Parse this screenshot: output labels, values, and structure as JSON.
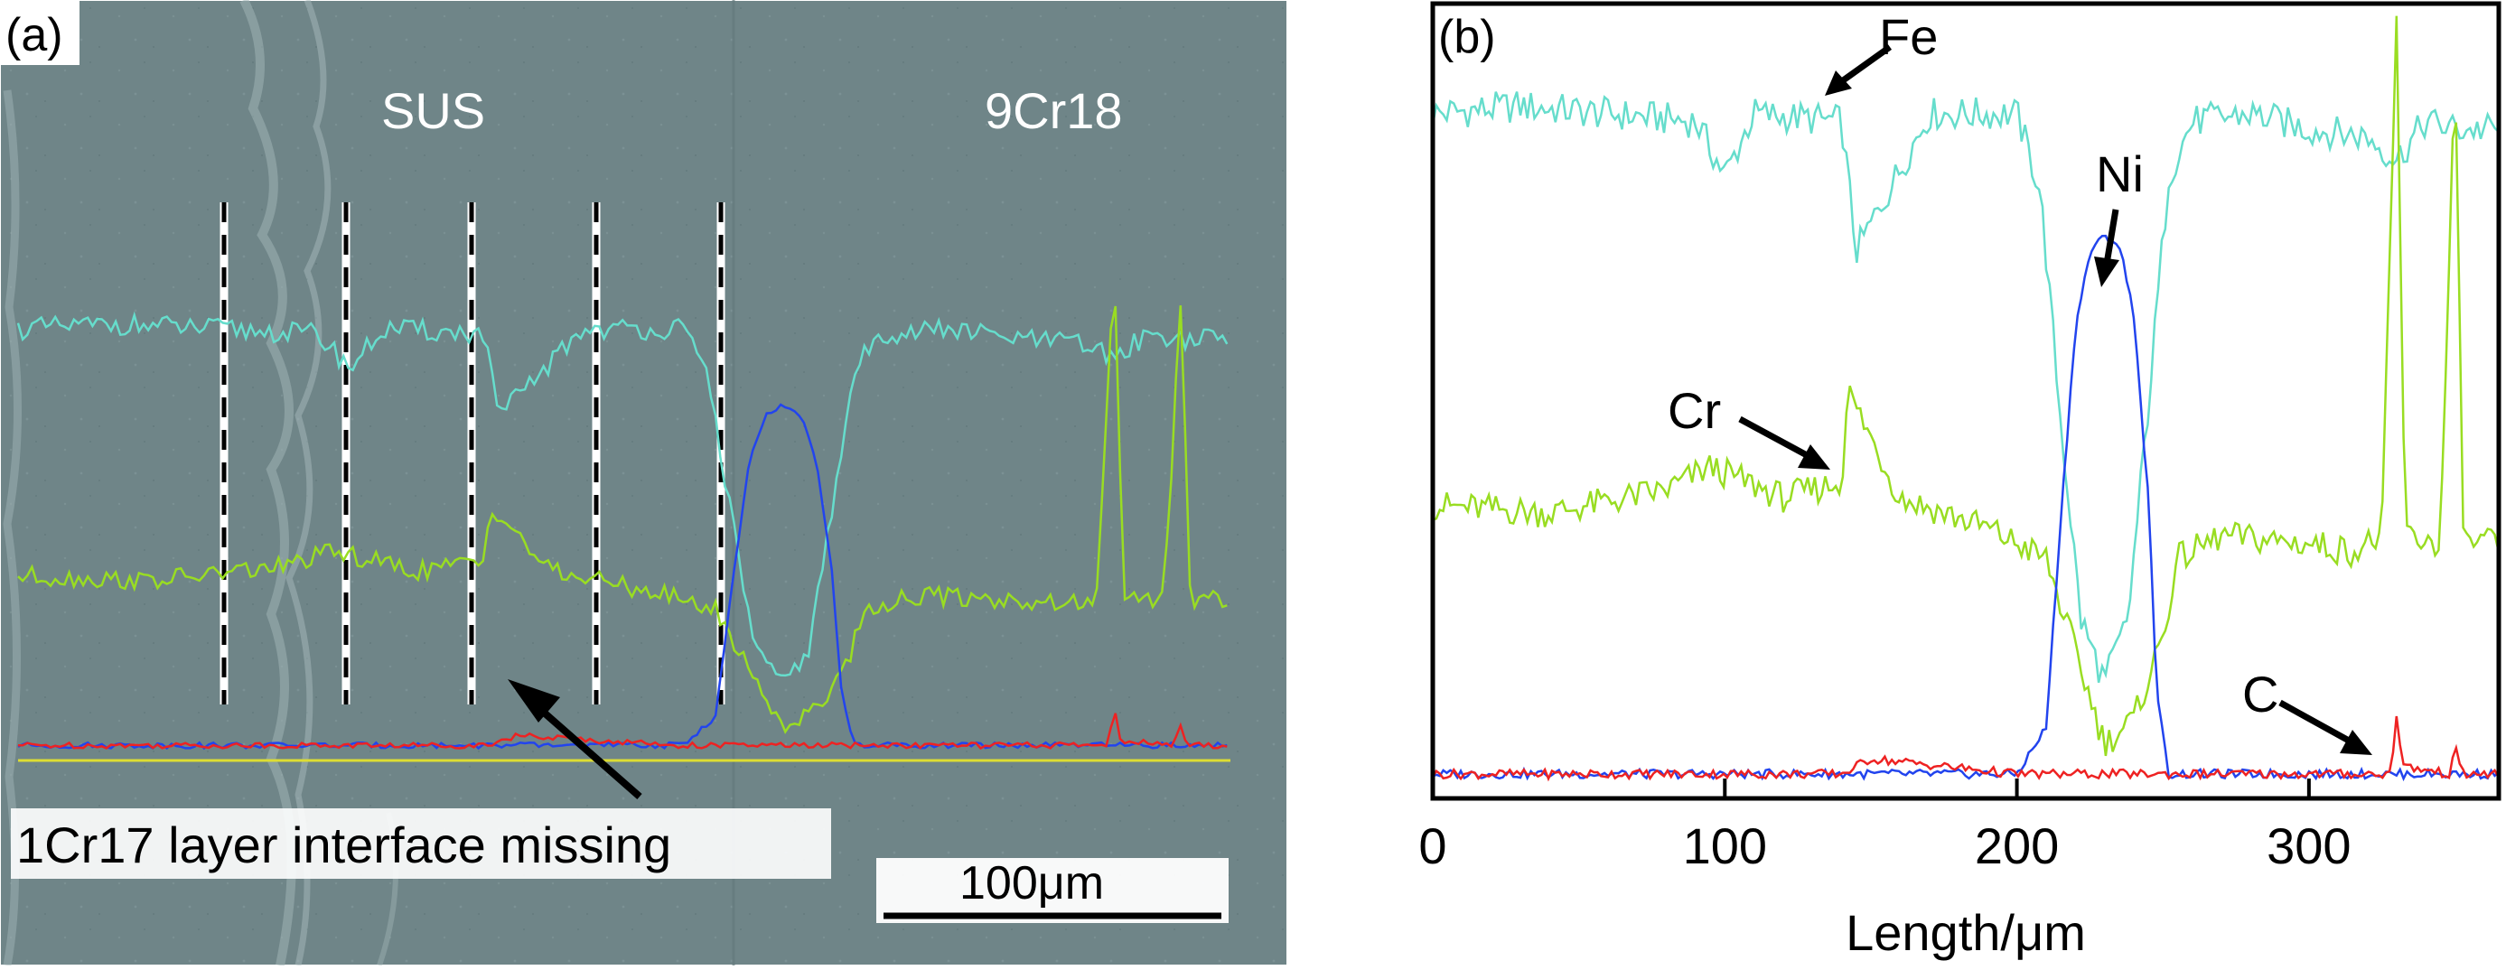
{
  "colors": {
    "fe": "#66ddcc",
    "cr": "#99dd22",
    "ni": "#2244ee",
    "c": "#ee2222",
    "baseline": "#dddd33",
    "micrograph": "#6e8487",
    "axis": "#000000"
  },
  "panel_a": {
    "label": "(a)",
    "region_left": "SUS",
    "region_right": "9Cr18",
    "annotation": "1Cr17 layer interface missing",
    "scale_bar": "100μm"
  },
  "panel_b": {
    "label": "(b)",
    "labels": {
      "fe": "Fe",
      "ni": "Ni",
      "cr": "Cr",
      "c": "C"
    }
  },
  "chart_data": {
    "type": "line",
    "title": "",
    "xlabel": "Length/μm",
    "ylabel": "",
    "xlim": [
      0,
      365
    ],
    "ylim": [
      0,
      100
    ],
    "xticks": [
      0,
      100,
      200,
      300
    ],
    "xtick_labels": [
      "0",
      "100",
      "200",
      "300"
    ],
    "series": [
      {
        "name": "Fe",
        "x": [
          0,
          30,
          60,
          90,
          100,
          110,
          140,
          145,
          170,
          200,
          208,
          215,
          222,
          230,
          238,
          245,
          252,
          260,
          280,
          300,
          320,
          330,
          340,
          350,
          365
        ],
        "y": [
          88,
          89,
          88,
          87,
          80,
          88,
          87,
          70,
          88,
          88,
          78,
          48,
          22,
          14,
          22,
          50,
          80,
          87,
          88,
          86,
          85,
          82,
          87,
          86,
          86
        ]
      },
      {
        "name": "Cr",
        "x": [
          0,
          40,
          80,
          95,
          120,
          140,
          142,
          160,
          190,
          210,
          220,
          230,
          240,
          250,
          255,
          270,
          300,
          315,
          325,
          330,
          333,
          345,
          350,
          353,
          365
        ],
        "y": [
          37,
          36,
          39,
          42,
          38,
          40,
          52,
          38,
          34,
          30,
          18,
          6,
          9,
          20,
          30,
          33,
          32,
          31,
          33,
          100,
          33,
          32,
          93,
          32,
          32
        ]
      },
      {
        "name": "Ni",
        "x": [
          0,
          100,
          200,
          210,
          215,
          220,
          225,
          230,
          235,
          240,
          245,
          248,
          252,
          260,
          365
        ],
        "y": [
          2,
          2,
          2,
          8,
          35,
          60,
          70,
          72,
          71,
          62,
          38,
          12,
          2,
          2,
          2
        ]
      },
      {
        "name": "C",
        "x": [
          0,
          100,
          140,
          150,
          200,
          250,
          300,
          320,
          328,
          330,
          332,
          348,
          350,
          352,
          365
        ],
        "y": [
          2,
          2,
          2,
          4,
          2,
          2,
          2,
          2,
          2,
          10,
          3,
          2,
          6,
          2,
          2
        ]
      }
    ]
  }
}
